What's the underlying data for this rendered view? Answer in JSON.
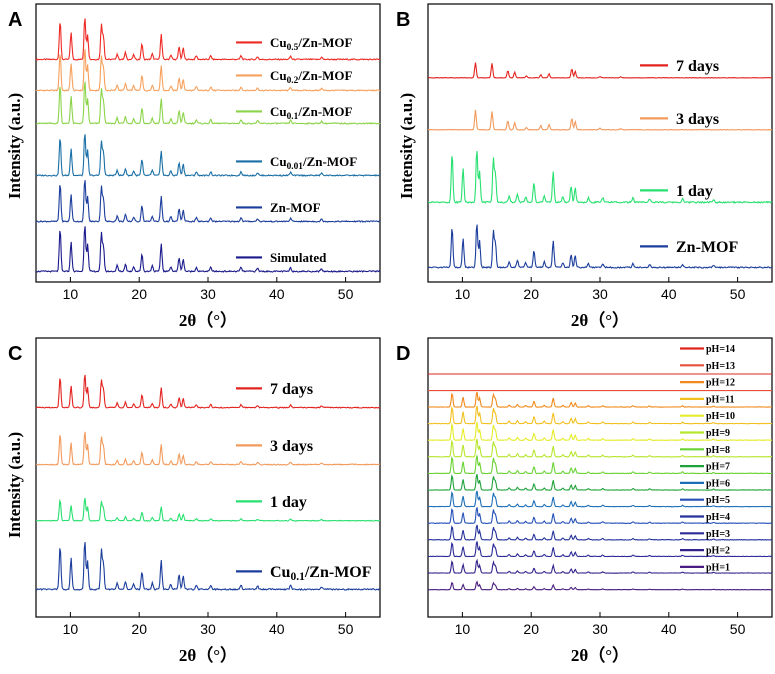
{
  "chart_data": [
    {
      "panel": "A",
      "type": "line",
      "xlabel": "2θ（°）",
      "ylabel": "Intensity (a.u.)",
      "xlim": [
        5,
        55
      ],
      "xticks": [
        10,
        20,
        30,
        40,
        50
      ],
      "series": [
        {
          "name": "Cu0.5/Zn-MOF",
          "name_main": "Cu",
          "name_sub": "0.5",
          "name_tail": "/Zn-MOF",
          "color": "#ee2a24",
          "scale": 1.0
        },
        {
          "name": "Cu0.2/Zn-MOF",
          "name_main": "Cu",
          "name_sub": "0.2",
          "name_tail": "/Zn-MOF",
          "color": "#f6a15d",
          "scale": 1.0
        },
        {
          "name": "Cu0.1/Zn-MOF",
          "name_main": "Cu",
          "name_sub": "0.1",
          "name_tail": "/Zn-MOF",
          "color": "#8bd449",
          "scale": 1.0
        },
        {
          "name": "Cu0.01/Zn-MOF",
          "name_main": "Cu",
          "name_sub": "0.01",
          "name_tail": "/Zn-MOF",
          "color": "#1a6fa6",
          "scale": 1.0
        },
        {
          "name": "Zn-MOF",
          "name_main": "Zn-MOF",
          "name_sub": "",
          "name_tail": "",
          "color": "#1b3d9c",
          "scale": 1.0
        },
        {
          "name": "Simulated",
          "name_main": "Simulated",
          "name_sub": "",
          "name_tail": "",
          "color": "#1a1a8c",
          "scale": 1.1
        }
      ]
    },
    {
      "panel": "B",
      "type": "line",
      "xlabel": "2θ（°）",
      "ylabel": "Intensity (a.u.)",
      "xlim": [
        5,
        55
      ],
      "xticks": [
        10,
        20,
        30,
        40,
        50
      ],
      "series": [
        {
          "name": "7 days",
          "name_main": "7 days",
          "name_sub": "",
          "name_tail": "",
          "color": "#e3231f",
          "scale": 0.35
        },
        {
          "name": "3 days",
          "name_main": "3 days",
          "name_sub": "",
          "name_tail": "",
          "color": "#f29a5c",
          "scale": 0.45
        },
        {
          "name": "1 day",
          "name_main": "1 day",
          "name_sub": "",
          "name_tail": "",
          "color": "#28e070",
          "scale": 1.25
        },
        {
          "name": "Zn-MOF",
          "name_main": "Zn-MOF",
          "name_sub": "",
          "name_tail": "",
          "color": "#1b3d9c",
          "scale": 1.05
        }
      ]
    },
    {
      "panel": "C",
      "type": "line",
      "xlabel": "2θ（°）",
      "ylabel": "Intensity (a.u.)",
      "xlim": [
        5,
        55
      ],
      "xticks": [
        10,
        20,
        30,
        40,
        50
      ],
      "series": [
        {
          "name": "7 days",
          "name_main": "7 days",
          "name_sub": "",
          "name_tail": "",
          "color": "#e3231f",
          "scale": 0.8
        },
        {
          "name": "3 days",
          "name_main": "3 days",
          "name_sub": "",
          "name_tail": "",
          "color": "#f29a5c",
          "scale": 0.8
        },
        {
          "name": "1 day",
          "name_main": "1 day",
          "name_sub": "",
          "name_tail": "",
          "color": "#28e070",
          "scale": 0.55
        },
        {
          "name": "Cu0.1/Zn-MOF",
          "name_main": "Cu",
          "name_sub": "0.1",
          "name_tail": "/Zn-MOF",
          "color": "#1b3d9c",
          "scale": 1.15
        }
      ]
    },
    {
      "panel": "D",
      "type": "line",
      "xlabel": "2θ（°）",
      "ylabel": "",
      "xlim": [
        5,
        55
      ],
      "xticks": [
        10,
        20,
        30,
        40,
        50
      ],
      "series": [
        {
          "name": "pH=14",
          "name_main": "pH=14",
          "name_sub": "",
          "name_tail": "",
          "color": "#e0261f",
          "scale": 0.0
        },
        {
          "name": "pH=13",
          "name_main": "pH=13",
          "name_sub": "",
          "name_tail": "",
          "color": "#e8503c",
          "scale": 0.0
        },
        {
          "name": "pH=12",
          "name_main": "pH=12",
          "name_sub": "",
          "name_tail": "",
          "color": "#f08a1c",
          "scale": 0.75
        },
        {
          "name": "pH=11",
          "name_main": "pH=11",
          "name_sub": "",
          "name_tail": "",
          "color": "#f2c020",
          "scale": 0.9
        },
        {
          "name": "pH=10",
          "name_main": "pH=10",
          "name_sub": "",
          "name_tail": "",
          "color": "#e6ec2a",
          "scale": 0.9
        },
        {
          "name": "pH=9",
          "name_main": "pH=9",
          "name_sub": "",
          "name_tail": "",
          "color": "#b7e62e",
          "scale": 0.9
        },
        {
          "name": "pH=8",
          "name_main": "pH=8",
          "name_sub": "",
          "name_tail": "",
          "color": "#6ad232",
          "scale": 0.9
        },
        {
          "name": "pH=7",
          "name_main": "pH=7",
          "name_sub": "",
          "name_tail": "",
          "color": "#1ea238",
          "scale": 0.8
        },
        {
          "name": "pH=6",
          "name_main": "pH=6",
          "name_sub": "",
          "name_tail": "",
          "color": "#1c6fb8",
          "scale": 0.8
        },
        {
          "name": "pH=5",
          "name_main": "pH=5",
          "name_sub": "",
          "name_tail": "",
          "color": "#2550b8",
          "scale": 0.8
        },
        {
          "name": "pH=4",
          "name_main": "pH=4",
          "name_sub": "",
          "name_tail": "",
          "color": "#24329c",
          "scale": 0.75
        },
        {
          "name": "pH=3",
          "name_main": "pH=3",
          "name_sub": "",
          "name_tail": "",
          "color": "#2c2a98",
          "scale": 0.75
        },
        {
          "name": "pH=2",
          "name_main": "pH=2",
          "name_sub": "",
          "name_tail": "",
          "color": "#33228c",
          "scale": 0.65
        },
        {
          "name": "pH=1",
          "name_main": "pH=1",
          "name_sub": "",
          "name_tail": "",
          "color": "#4a1e80",
          "scale": 0.4
        }
      ]
    }
  ]
}
